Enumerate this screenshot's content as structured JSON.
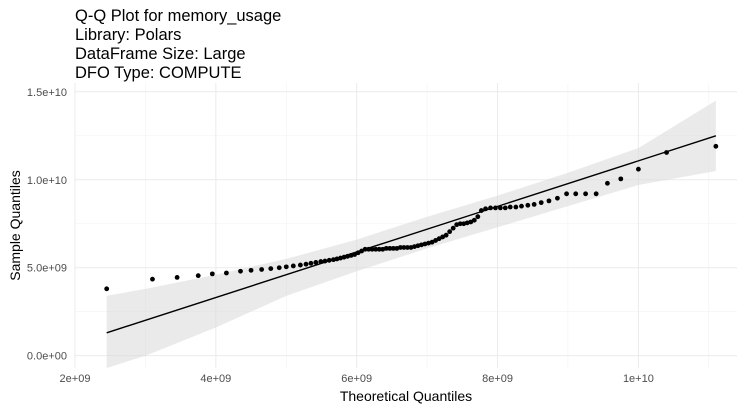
{
  "chart_data": {
    "type": "scatter",
    "title_lines": [
      "Q-Q Plot for memory_usage",
      "Library: Polars",
      "DataFrame Size: Large",
      "DFO Type: COMPUTE"
    ],
    "xlabel": "Theoretical Quantiles",
    "ylabel": "Sample Quantiles",
    "xlim": [
      2000000000,
      11400000000
    ],
    "ylim": [
      -700000000,
      15500000000
    ],
    "x_ticks": [
      {
        "value": 2000000000,
        "label": "2e+09"
      },
      {
        "value": 4000000000,
        "label": "4e+09"
      },
      {
        "value": 6000000000,
        "label": "6e+09"
      },
      {
        "value": 8000000000,
        "label": "8e+09"
      },
      {
        "value": 10000000000,
        "label": "1e+10"
      }
    ],
    "y_ticks": [
      {
        "value": 0,
        "label": "0.0e+00"
      },
      {
        "value": 5000000000,
        "label": "5.0e+09"
      },
      {
        "value": 10000000000,
        "label": "1.0e+10"
      },
      {
        "value": 15000000000,
        "label": "1.5e+10"
      }
    ],
    "reference_line": {
      "x": [
        2450000000,
        11100000000
      ],
      "y": [
        1300000000,
        12500000000
      ]
    },
    "confidence_band": {
      "x": [
        2450000000,
        3000000000,
        4000000000,
        5000000000,
        6000000000,
        7000000000,
        8000000000,
        9000000000,
        10000000000,
        11100000000
      ],
      "upper": [
        3400000000,
        3800000000,
        4600000000,
        5500000000,
        6600000000,
        7900000000,
        9100000000,
        10400000000,
        11800000000,
        14500000000
      ],
      "lower": [
        -700000000,
        0,
        1600000000,
        3400000000,
        4800000000,
        6100000000,
        7300000000,
        8500000000,
        9700000000,
        10500000000
      ]
    },
    "points": {
      "x": [
        2450000000,
        3100000000,
        3450000000,
        3750000000,
        3950000000,
        4150000000,
        4350000000,
        4500000000,
        4650000000,
        4780000000,
        4900000000,
        5000000000,
        5100000000,
        5200000000,
        5280000000,
        5350000000,
        5420000000,
        5490000000,
        5550000000,
        5610000000,
        5670000000,
        5720000000,
        5770000000,
        5820000000,
        5870000000,
        5920000000,
        5970000000,
        6020000000,
        6070000000,
        6120000000,
        6170000000,
        6220000000,
        6270000000,
        6320000000,
        6370000000,
        6420000000,
        6470000000,
        6520000000,
        6570000000,
        6620000000,
        6670000000,
        6720000000,
        6770000000,
        6820000000,
        6870000000,
        6920000000,
        6970000000,
        7020000000,
        7070000000,
        7120000000,
        7170000000,
        7220000000,
        7270000000,
        7320000000,
        7370000000,
        7420000000,
        7470000000,
        7520000000,
        7570000000,
        7620000000,
        7670000000,
        7720000000,
        7770000000,
        7830000000,
        7900000000,
        7970000000,
        8040000000,
        8110000000,
        8180000000,
        8260000000,
        8340000000,
        8430000000,
        8520000000,
        8620000000,
        8730000000,
        8850000000,
        8980000000,
        9110000000,
        9250000000,
        9400000000,
        9560000000,
        9750000000,
        10000000000,
        10400000000,
        11100000000
      ],
      "y": [
        3800000000,
        4350000000,
        4450000000,
        4550000000,
        4650000000,
        4700000000,
        4800000000,
        4850000000,
        4900000000,
        4950000000,
        5000000000,
        5050000000,
        5100000000,
        5150000000,
        5200000000,
        5250000000,
        5300000000,
        5350000000,
        5380000000,
        5420000000,
        5460000000,
        5500000000,
        5550000000,
        5600000000,
        5650000000,
        5700000000,
        5750000000,
        5850000000,
        5950000000,
        6050000000,
        6050000000,
        6050000000,
        6050000000,
        6050000000,
        6050000000,
        6100000000,
        6100000000,
        6100000000,
        6100000000,
        6150000000,
        6150000000,
        6150000000,
        6150000000,
        6200000000,
        6250000000,
        6300000000,
        6350000000,
        6400000000,
        6450000000,
        6550000000,
        6650000000,
        6750000000,
        6850000000,
        7050000000,
        7250000000,
        7450000000,
        7500000000,
        7500000000,
        7550000000,
        7600000000,
        7700000000,
        7900000000,
        8250000000,
        8350000000,
        8400000000,
        8400000000,
        8400000000,
        8400000000,
        8450000000,
        8450000000,
        8500000000,
        8550000000,
        8600000000,
        8700000000,
        8800000000,
        8950000000,
        9200000000,
        9200000000,
        9200000000,
        9200000000,
        9800000000,
        10050000000,
        10600000000,
        11550000000,
        11900000000
      ]
    }
  }
}
